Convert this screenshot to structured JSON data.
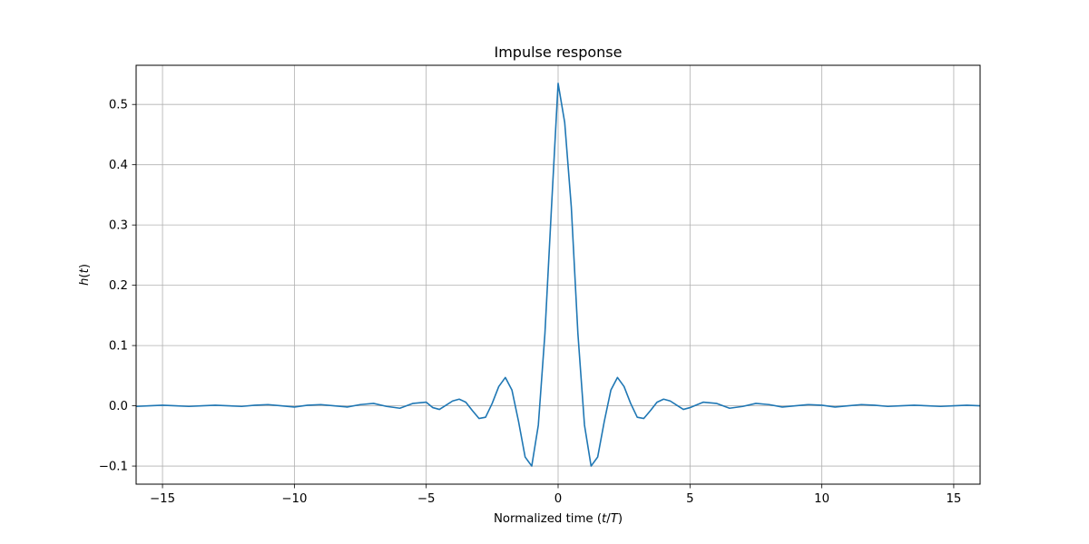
{
  "chart_data": {
    "type": "line",
    "title": "Impulse response",
    "xlabel": {
      "pre": "Normalized time (",
      "var1": "t",
      "sep": "/",
      "var2": "T",
      "post": ")"
    },
    "ylabel": {
      "func": "h",
      "open": "(",
      "var": "t",
      "close": ")"
    },
    "xlim": [
      -16,
      16
    ],
    "ylim": [
      -0.13,
      0.565
    ],
    "xticks": [
      -15,
      -10,
      -5,
      0,
      5,
      10,
      15
    ],
    "xtick_labels": [
      "−15",
      "−10",
      "−5",
      "0",
      "5",
      "10",
      "15"
    ],
    "yticks": [
      -0.1,
      0.0,
      0.1,
      0.2,
      0.3,
      0.4,
      0.5
    ],
    "ytick_labels": [
      "−0.1",
      "0.0",
      "0.1",
      "0.2",
      "0.3",
      "0.4",
      "0.5"
    ],
    "grid": true,
    "line_color": "#1f77b4",
    "grid_color": "#b0b0b0",
    "series": [
      {
        "x": [
          -16.0,
          -15.5,
          -15.0,
          -14.5,
          -14.0,
          -13.5,
          -13.0,
          -12.5,
          -12.0,
          -11.5,
          -11.0,
          -10.5,
          -10.0,
          -9.5,
          -9.0,
          -8.5,
          -8.0,
          -7.5,
          -7.0,
          -6.5,
          -6.0,
          -5.5,
          -5.0,
          -4.75,
          -4.5,
          -4.25,
          -4.0,
          -3.75,
          -3.5,
          -3.25,
          -3.0,
          -2.75,
          -2.5,
          -2.25,
          -2.0,
          -1.75,
          -1.5,
          -1.25,
          -1.0,
          -0.75,
          -0.5,
          -0.25,
          0.0,
          0.25,
          0.5,
          0.75,
          1.0,
          1.25,
          1.5,
          1.75,
          2.0,
          2.25,
          2.5,
          2.75,
          3.0,
          3.25,
          3.5,
          3.75,
          4.0,
          4.25,
          4.5,
          4.75,
          5.0,
          5.5,
          6.0,
          6.5,
          7.0,
          7.5,
          8.0,
          8.5,
          9.0,
          9.5,
          10.0,
          10.5,
          11.0,
          11.5,
          12.0,
          12.5,
          13.0,
          13.5,
          14.0,
          14.5,
          15.0,
          15.5,
          16.0
        ],
        "y": [
          -0.001,
          0.0,
          0.001,
          0.0,
          -0.001,
          0.0,
          0.001,
          0.0,
          -0.001,
          0.001,
          0.002,
          0.0,
          -0.002,
          0.001,
          0.002,
          0.0,
          -0.002,
          0.002,
          0.004,
          -0.001,
          -0.004,
          0.004,
          0.006,
          -0.003,
          -0.006,
          0.001,
          0.008,
          0.011,
          0.006,
          -0.008,
          -0.021,
          -0.019,
          0.004,
          0.032,
          0.047,
          0.026,
          -0.026,
          -0.085,
          -0.1,
          -0.032,
          0.12,
          0.33,
          0.535,
          0.47,
          0.33,
          0.12,
          -0.032,
          -0.1,
          -0.085,
          -0.026,
          0.026,
          0.047,
          0.032,
          0.004,
          -0.019,
          -0.021,
          -0.008,
          0.006,
          0.011,
          0.008,
          0.001,
          -0.006,
          -0.003,
          0.006,
          0.004,
          -0.004,
          -0.001,
          0.004,
          0.002,
          -0.002,
          0.0,
          0.002,
          0.001,
          -0.002,
          0.0,
          0.002,
          0.001,
          -0.001,
          0.0,
          0.001,
          0.0,
          -0.001,
          0.0,
          0.001,
          0.0
        ]
      }
    ]
  }
}
